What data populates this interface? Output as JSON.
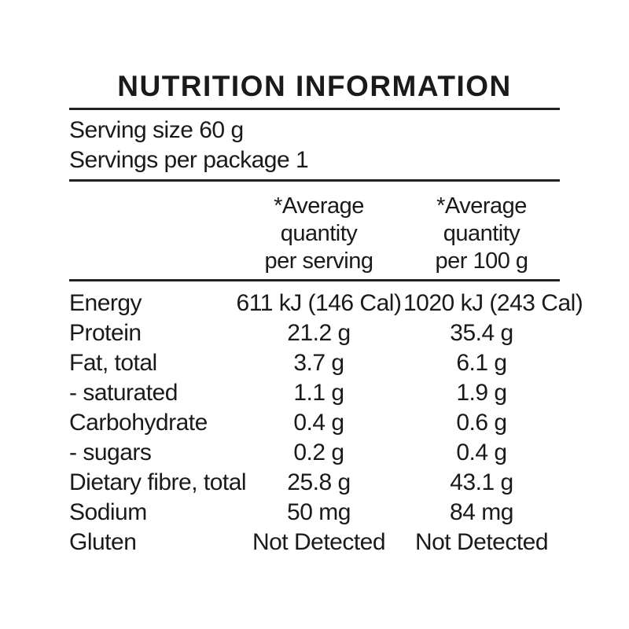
{
  "panel": {
    "title": "NUTRITION INFORMATION",
    "serving_size": "Serving size 60 g",
    "servings_per_package": "Servings per package 1",
    "columns": {
      "per_serving": [
        "*Average",
        "quantity",
        "per serving"
      ],
      "per_100g": [
        "*Average",
        "quantity",
        "per 100 g"
      ]
    },
    "rows": [
      {
        "nutrient": "Energy",
        "per_serving": "611 kJ (146 Cal)",
        "per_100g": "1020 kJ (243 Cal)"
      },
      {
        "nutrient": "Protein",
        "per_serving": "21.2 g",
        "per_100g": "35.4 g"
      },
      {
        "nutrient": "Fat, total",
        "per_serving": "3.7 g",
        "per_100g": "6.1 g"
      },
      {
        "nutrient": "- saturated",
        "per_serving": "1.1 g",
        "per_100g": "1.9 g"
      },
      {
        "nutrient": "Carbohydrate",
        "per_serving": "0.4 g",
        "per_100g": "0.6 g"
      },
      {
        "nutrient": "- sugars",
        "per_serving": "0.2 g",
        "per_100g": "0.4 g"
      },
      {
        "nutrient": "Dietary fibre, total",
        "per_serving": "25.8 g",
        "per_100g": "43.1 g"
      },
      {
        "nutrient": "Sodium",
        "per_serving": "50 mg",
        "per_100g": "84 mg"
      },
      {
        "nutrient": "Gluten",
        "per_serving": "Not Detected",
        "per_100g": "Not Detected"
      }
    ],
    "colors": {
      "text": "#1a1a1a",
      "rule": "#222222",
      "background": "#ffffff"
    }
  }
}
